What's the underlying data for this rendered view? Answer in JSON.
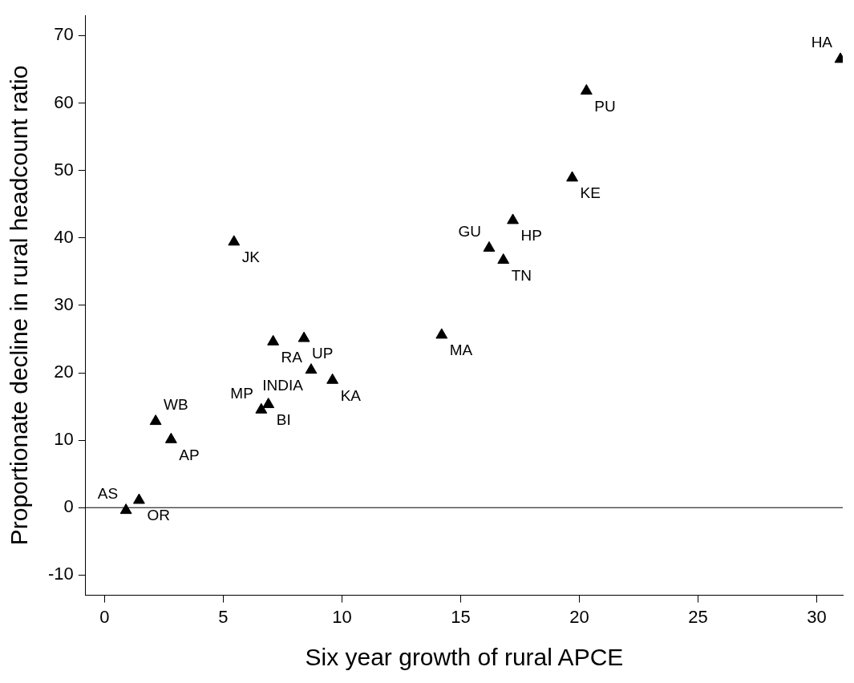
{
  "chart_data": {
    "type": "scatter",
    "xlabel": "Six year growth of rural APCE",
    "ylabel": "Proportionate decline in rural headcount ratio",
    "x": [
      31.0,
      20.3,
      19.7,
      17.2,
      16.2,
      16.8,
      14.2,
      5.45,
      7.1,
      8.4,
      8.7,
      9.6,
      6.9,
      6.6,
      2.15,
      2.8,
      1.45,
      0.9
    ],
    "series": [
      {
        "color": "#000000",
        "values": [
          66.5,
          61.8,
          48.9,
          42.6,
          38.5,
          36.7,
          25.6,
          39.4,
          24.6,
          25.1,
          20.4,
          18.9,
          15.3,
          14.5,
          12.8,
          10.1,
          1.1,
          -0.4
        ]
      }
    ],
    "marker": "triangle",
    "grid": false,
    "legend": false,
    "xlim": [
      -0.8,
      31.1
    ],
    "xticks": [
      0,
      5,
      10,
      15,
      20,
      25,
      30
    ],
    "ylim": [
      -13,
      73
    ],
    "yticks": [
      -10,
      0,
      10,
      20,
      30,
      40,
      50,
      60,
      70
    ],
    "ref_lines": [
      {
        "axis": "y",
        "value": 0,
        "color": "#000000"
      }
    ],
    "annotations": [
      {
        "text": "HA",
        "x": 31.0,
        "y": 66.5
      },
      {
        "text": "PU",
        "x": 20.3,
        "y": 61.8
      },
      {
        "text": "KE",
        "x": 19.7,
        "y": 48.9
      },
      {
        "text": "HP",
        "x": 17.2,
        "y": 42.6
      },
      {
        "text": "GU",
        "x": 16.2,
        "y": 38.5
      },
      {
        "text": "TN",
        "x": 16.8,
        "y": 36.7
      },
      {
        "text": "MA",
        "x": 14.2,
        "y": 25.6
      },
      {
        "text": "JK",
        "x": 5.45,
        "y": 39.4
      },
      {
        "text": "RA",
        "x": 7.1,
        "y": 24.6
      },
      {
        "text": "UP",
        "x": 8.4,
        "y": 25.1
      },
      {
        "text": "INDIA",
        "x": 8.7,
        "y": 20.4
      },
      {
        "text": "KA",
        "x": 9.6,
        "y": 18.9
      },
      {
        "text": "BI",
        "x": 6.9,
        "y": 15.3
      },
      {
        "text": "MP",
        "x": 6.6,
        "y": 14.5
      },
      {
        "text": "WB",
        "x": 2.15,
        "y": 12.8
      },
      {
        "text": "AP",
        "x": 2.8,
        "y": 10.1
      },
      {
        "text": "OR",
        "x": 1.45,
        "y": 1.1
      },
      {
        "text": "AS",
        "x": 0.9,
        "y": -0.4
      }
    ]
  }
}
